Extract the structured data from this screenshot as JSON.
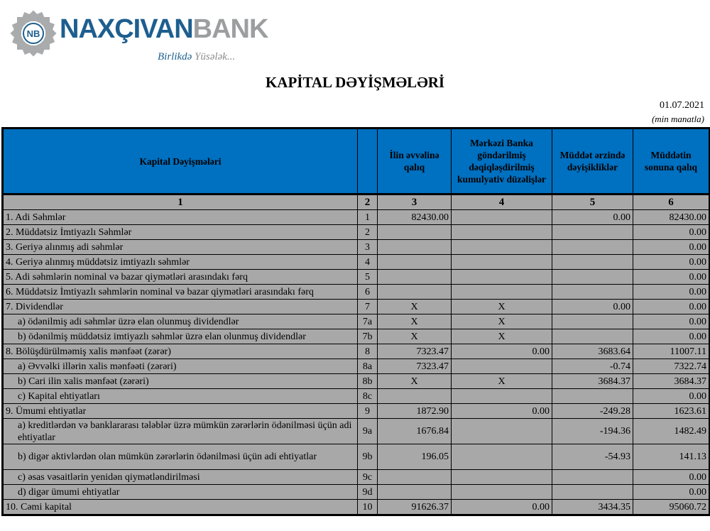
{
  "logo": {
    "brand_a": "NAXÇIVAN",
    "brand_b": "BANK",
    "badge": "NB",
    "slogan_a": "Birlikdə",
    "slogan_b": "Yüsələk..."
  },
  "title": "KAPİTAL DƏYİŞMƏLƏRİ",
  "date": "01.07.2021",
  "unit": "(min manatla)",
  "colors": {
    "header_blue": "#0070c0",
    "cell_gray": "#a8a8a8"
  },
  "table": {
    "headers": [
      "Kapital Dəyişmələri",
      "",
      "İlin əvvəlinə qalıq",
      "Mərkəzi Banka göndərilmiş dəqiqləşdirilmiş kumulyativ düzəlişlər",
      "Müddət ərzində dəyişikliklər",
      "Müddətin sonuna qalıq"
    ],
    "col_numbers": [
      "1",
      "2",
      "3",
      "4",
      "5",
      "6"
    ],
    "rows": [
      {
        "label": "1. Adi Səhmlər",
        "code": "1",
        "c3": "82430.00",
        "c4": "",
        "c5": "0.00",
        "c6": "82430.00"
      },
      {
        "label": "2. Müddətsiz İmtiyazlı Səhmlər",
        "code": "2",
        "c3": "",
        "c4": "",
        "c5": "",
        "c6": "0.00"
      },
      {
        "label": "3. Geriyə alınmış adi səhmlər",
        "code": "3",
        "c3": "",
        "c4": "",
        "c5": "",
        "c6": "0.00"
      },
      {
        "label": "4. Geriyə alınmış müddətsiz imtiyazlı səhmlər",
        "code": "4",
        "c3": "",
        "c4": "",
        "c5": "",
        "c6": "0.00"
      },
      {
        "label": "5. Adi səhmlərin nominal və bazar qiymətləri arasındakı fərq",
        "code": "5",
        "c3": "",
        "c4": "",
        "c5": "",
        "c6": "0.00"
      },
      {
        "label": "6. Müddətsiz İmtiyazlı səhmlərin nominal və bazar qiymətləri arasındakı fərq",
        "code": "6",
        "c3": "",
        "c4": "",
        "c5": "",
        "c6": "0.00"
      },
      {
        "label": "7. Dividendlər",
        "code": "7",
        "c3": "X",
        "c4": "X",
        "c5": "0.00",
        "c6": "0.00"
      },
      {
        "label": "a) ödənilmiş adi səhmlər üzrə elan olunmuş dividendlər",
        "code": "7a",
        "c3": "X",
        "c4": "X",
        "c5": "",
        "c6": "0.00",
        "indent": true
      },
      {
        "label": "b) ödənilmiş müddətsiz imtiyazlı səhmlər üzrə elan olunmuş dividendlər",
        "code": "7b",
        "c3": "X",
        "c4": "X",
        "c5": "",
        "c6": "0.00",
        "indent": true
      },
      {
        "label": "8. Bölüşdürülməmiş xalis mənfəət (zərər)",
        "code": "8",
        "c3": "7323.47",
        "c4": "0.00",
        "c5": "3683.64",
        "c6": "11007.11"
      },
      {
        "label": "a) Əvvəlki illərin xalis mənfəəti (zərəri)",
        "code": "8a",
        "c3": "7323.47",
        "c4": "",
        "c5": "-0.74",
        "c6": "7322.74",
        "indent": true
      },
      {
        "label": "b) Cari ilin xalis mənfəət (zərəri)",
        "code": "8b",
        "c3": "X",
        "c4": "X",
        "c5": "3684.37",
        "c6": "3684.37",
        "indent": true
      },
      {
        "label": "c) Kapital ehtiyatları",
        "code": "8c",
        "c3": "",
        "c4": "",
        "c5": "",
        "c6": "0.00",
        "indent": true
      },
      {
        "label": "9. Ümumi ehtiyatlar",
        "code": "9",
        "c3": "1872.90",
        "c4": "0.00",
        "c5": "-249.28",
        "c6": "1623.61"
      },
      {
        "label": "a) kreditlərdən və banklararası  tələblər üzrə mümkün zərərlərin ödənilməsi üçün adi ehtiyatlar",
        "code": "9a",
        "c3": "1676.84",
        "c4": "",
        "c5": "-194.36",
        "c6": "1482.49",
        "indent": true,
        "tall": true
      },
      {
        "label": "b) digər aktivlərdən olan mümkün zərərlərin ödənilməsi üçün adi ehtiyatlar",
        "code": "9b",
        "c3": "196.05",
        "c4": "",
        "c5": "-54.93",
        "c6": "141.13",
        "indent": true,
        "tall": true
      },
      {
        "label": "c) əsas vəsaitlərin yenidən qiymətləndirilməsi",
        "code": "9c",
        "c3": "",
        "c4": "",
        "c5": "",
        "c6": "0.00",
        "indent": true
      },
      {
        "label": "d) digər ümumi ehtiyatlar",
        "code": "9d",
        "c3": "",
        "c4": "",
        "c5": "",
        "c6": "0.00",
        "indent": true
      },
      {
        "label": "10. Cəmi kapital",
        "code": "10",
        "c3": "91626.37",
        "c4": "0.00",
        "c5": "3434.35",
        "c6": "95060.72"
      }
    ]
  }
}
